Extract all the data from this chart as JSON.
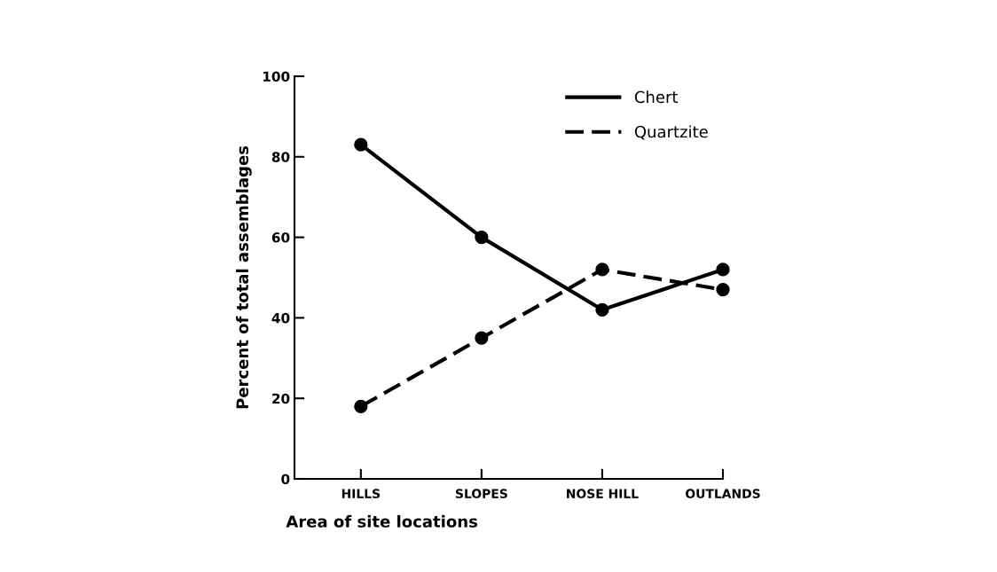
{
  "chart_data": {
    "type": "line",
    "xlabel": "Area of site locations",
    "ylabel": "Percent of total assemblages",
    "categories": [
      "HILLS",
      "SLOPES",
      "NOSE HILL",
      "OUTLANDS"
    ],
    "series": [
      {
        "name": "Chert",
        "color": "#000000",
        "values": [
          83,
          60,
          42,
          52
        ],
        "line_style": "solid"
      },
      {
        "name": "Quartzite",
        "color": "#000000",
        "values": [
          18,
          35,
          52,
          47
        ],
        "line_style": "dashed"
      }
    ],
    "ylim": [
      0,
      100
    ],
    "yticks": [
      0,
      20,
      40,
      60,
      80,
      100
    ],
    "marker": "circle",
    "grid": false,
    "legend": "top right"
  }
}
